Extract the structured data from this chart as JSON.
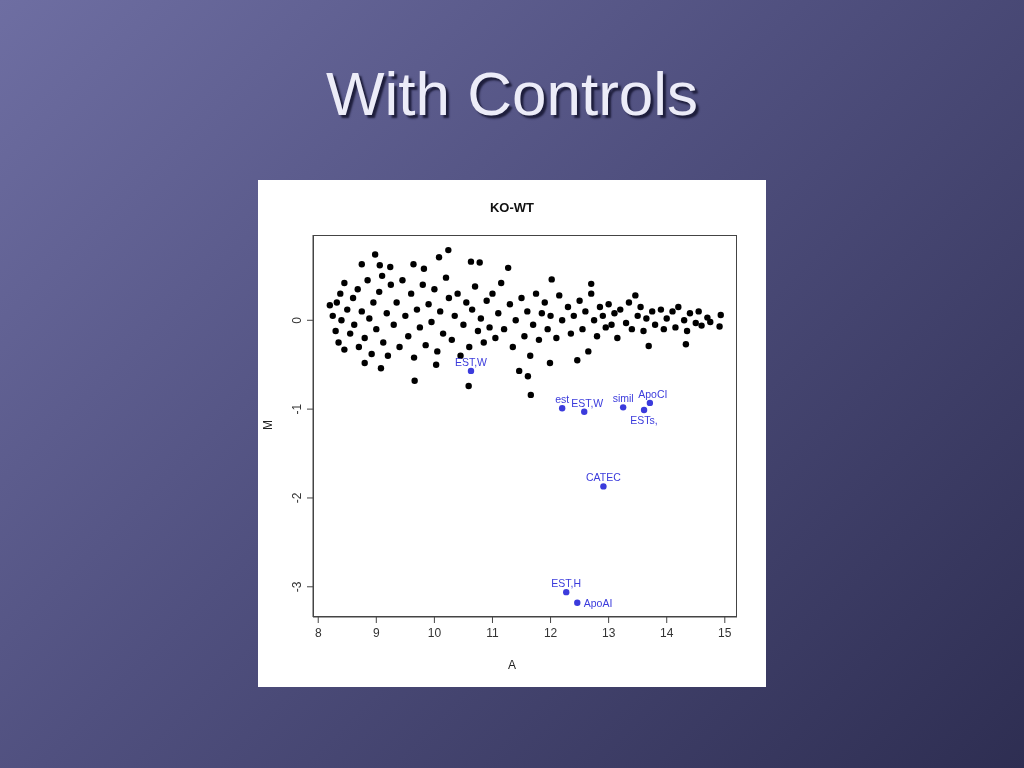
{
  "chart_data": {
    "type": "scatter",
    "title": "With Controls",
    "subtitle": "KO-WT",
    "xlabel": "A",
    "ylabel": "M",
    "xlim": [
      7.91,
      15.21
    ],
    "ylim": [
      -3.34,
      0.96
    ],
    "xticks": [
      8,
      9,
      10,
      11,
      12,
      13,
      14,
      15
    ],
    "yticks": [
      -3,
      -2,
      -1,
      0
    ],
    "marker": "circle",
    "series": [
      {
        "color": "#000000",
        "x": [
          8.25,
          8.3,
          8.32,
          8.35,
          8.38,
          8.4,
          8.45,
          8.45,
          8.5,
          8.55,
          8.6,
          8.62,
          8.68,
          8.7,
          8.75,
          8.8,
          8.85,
          8.88,
          8.92,
          8.95,
          9.0,
          9.05,
          9.1,
          9.12,
          9.18,
          9.2,
          9.25,
          9.3,
          9.35,
          9.4,
          9.45,
          9.5,
          9.55,
          9.6,
          9.65,
          9.7,
          9.75,
          9.8,
          9.85,
          9.9,
          9.95,
          10.0,
          10.05,
          10.1,
          10.15,
          10.2,
          10.25,
          10.3,
          10.35,
          10.4,
          10.45,
          10.5,
          10.55,
          10.6,
          10.65,
          10.7,
          10.75,
          10.8,
          10.85,
          10.9,
          10.95,
          11.0,
          11.05,
          11.1,
          11.15,
          11.2,
          11.3,
          11.35,
          11.4,
          11.5,
          11.55,
          11.6,
          11.65,
          11.7,
          11.75,
          11.8,
          11.85,
          11.9,
          11.95,
          12.0,
          12.1,
          12.15,
          12.2,
          12.3,
          12.35,
          12.4,
          12.5,
          12.55,
          12.6,
          12.65,
          12.7,
          12.75,
          12.8,
          12.85,
          12.9,
          12.95,
          13.0,
          13.05,
          13.1,
          13.15,
          13.2,
          13.3,
          13.35,
          13.4,
          13.5,
          13.55,
          13.6,
          13.65,
          13.75,
          13.8,
          13.9,
          13.95,
          14.0,
          14.1,
          14.15,
          14.2,
          14.3,
          14.35,
          14.4,
          14.5,
          14.55,
          14.6,
          14.7,
          14.75,
          8.98,
          10.24,
          10.08,
          8.75,
          9.64,
          10.63,
          10.78,
          11.27,
          9.24,
          9.06,
          9.82,
          12.02,
          12.7,
          13.46,
          8.2,
          14.93,
          14.91,
          14.33,
          13.69,
          12.46,
          11.99,
          11.61,
          11.66,
          10.59,
          9.66,
          9.08,
          8.8,
          11.46,
          10.03
        ],
        "values": [
          0.05,
          -0.12,
          0.2,
          -0.25,
          0.3,
          0.0,
          -0.33,
          0.42,
          0.12,
          -0.15,
          0.25,
          -0.05,
          0.35,
          -0.3,
          0.1,
          -0.2,
          0.45,
          0.02,
          -0.38,
          0.2,
          -0.1,
          0.32,
          0.5,
          -0.25,
          0.08,
          -0.4,
          0.4,
          -0.05,
          0.2,
          -0.3,
          0.45,
          0.05,
          -0.18,
          0.3,
          -0.42,
          0.12,
          -0.08,
          0.4,
          -0.28,
          0.18,
          -0.02,
          0.35,
          -0.35,
          0.1,
          -0.15,
          0.48,
          0.25,
          -0.22,
          0.05,
          0.3,
          -0.4,
          -0.05,
          0.2,
          -0.3,
          0.12,
          0.38,
          -0.12,
          0.02,
          -0.25,
          0.22,
          -0.08,
          0.3,
          -0.2,
          0.08,
          0.42,
          -0.1,
          0.18,
          -0.3,
          0.0,
          0.25,
          -0.18,
          0.1,
          -0.4,
          -0.05,
          0.3,
          -0.22,
          0.08,
          0.2,
          -0.1,
          0.05,
          -0.2,
          0.28,
          0.0,
          0.15,
          -0.15,
          0.05,
          0.22,
          -0.1,
          0.1,
          -0.35,
          0.3,
          0.0,
          -0.18,
          0.15,
          0.05,
          -0.08,
          0.18,
          -0.05,
          0.08,
          -0.2,
          0.12,
          -0.03,
          0.2,
          -0.1,
          0.05,
          0.15,
          -0.12,
          0.02,
          0.1,
          -0.05,
          0.12,
          -0.1,
          0.02,
          0.1,
          -0.08,
          0.15,
          0.0,
          -0.12,
          0.08,
          -0.03,
          0.1,
          -0.06,
          0.03,
          -0.02,
          0.74,
          0.79,
          0.71,
          0.63,
          0.63,
          0.66,
          0.65,
          0.59,
          0.6,
          0.62,
          0.58,
          0.46,
          0.41,
          0.28,
          0.17,
          0.06,
          -0.07,
          -0.27,
          -0.29,
          -0.45,
          -0.48,
          -0.63,
          -0.84,
          -0.74,
          -0.68,
          -0.54,
          -0.48,
          -0.57,
          -0.5
        ]
      },
      {
        "type": "scatter",
        "color": "#3b3bdc",
        "x": [
          10.63,
          12.2,
          12.58,
          13.25,
          13.71,
          13.61,
          12.91,
          12.27,
          12.46
        ],
        "values": [
          -0.57,
          -0.99,
          -1.03,
          -0.98,
          -0.93,
          -1.01,
          -1.87,
          -3.06,
          -3.18
        ],
        "value_labels": [
          "EST,W",
          "est",
          "EST,W",
          "simil",
          "ApoCI",
          "ESTs,",
          "CATEC",
          "EST,H",
          "ApoAI"
        ]
      }
    ]
  }
}
